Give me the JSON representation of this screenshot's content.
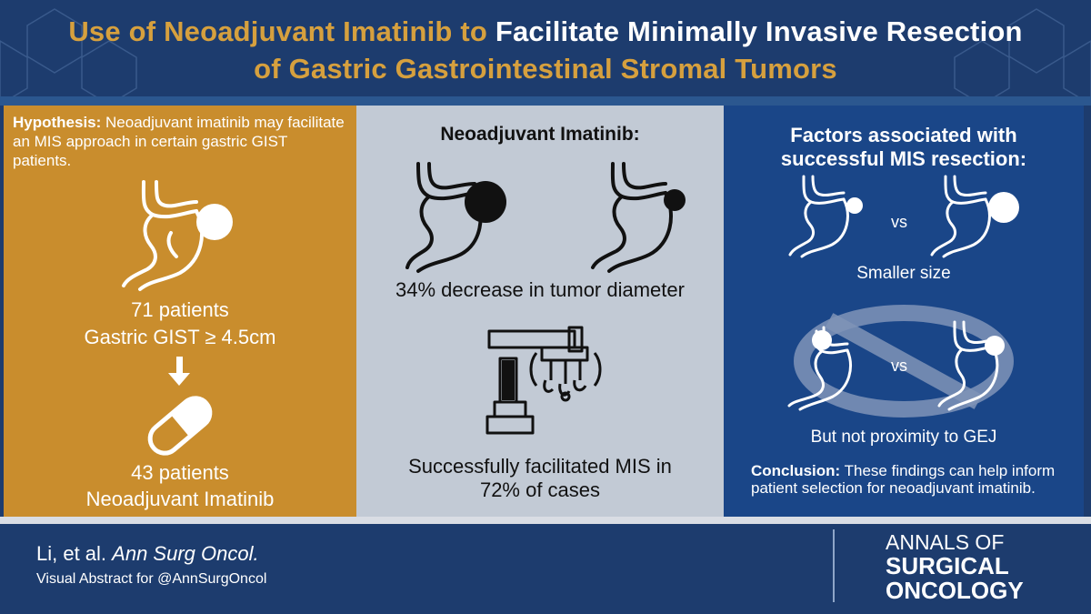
{
  "header": {
    "title_gold": "Use of Neoadjuvant Imatinib to",
    "title_white": "Facilitate Minimally Invasive Resection",
    "title_line2": "of Gastric Gastrointestinal Stromal Tumors"
  },
  "left_panel": {
    "hypothesis_label": "Hypothesis:",
    "hypothesis_text": "Neoadjuvant imatinib may facilitate an MIS approach in certain gastric GIST patients.",
    "patients_count": "71 patients",
    "patients_criteria": "Gastric GIST ≥ 4.5cm",
    "treated_count": "43 patients",
    "treated_label": "Neoadjuvant Imatinib",
    "icons": [
      "stomach-icon",
      "down-arrow-icon",
      "pill-icon"
    ]
  },
  "middle_panel": {
    "heading": "Neoadjuvant Imatinib:",
    "tumor_result": "34% decrease in tumor diameter",
    "mis_result_line1": "Successfully facilitated MIS in",
    "mis_result_line2": "72% of cases",
    "icons": [
      "stomach-large-tumor-icon",
      "stomach-small-tumor-icon",
      "surgical-robot-icon"
    ]
  },
  "right_panel": {
    "heading_line1": "Factors associated with",
    "heading_line2": "successful MIS resection:",
    "vs_label_1": "vs",
    "factor_1": "Smaller size",
    "vs_label_2": "vs",
    "factor_2": "But not proximity to GEJ",
    "conclusion_label": "Conclusion:",
    "conclusion_text": "These findings can help inform patient selection for neoadjuvant imatinib.",
    "icons": [
      "stomach-small-tumor-icon",
      "stomach-large-tumor-icon",
      "prohibited-icon",
      "stomach-distal-tumor-icon",
      "stomach-gej-tumor-icon"
    ]
  },
  "footer": {
    "citation_authors": "Li, et al.",
    "citation_journal": "Ann Surg Oncol.",
    "subtitle": "Visual Abstract for @AnnSurgOncol",
    "brand_line1": "ANNALS OF",
    "brand_line2": "SURGICAL",
    "brand_line3": "ONCOLOGY"
  },
  "colors": {
    "background": "#1d3c6e",
    "gold_panel": "#c98d2d",
    "gray_panel": "#c2cad5",
    "blue_panel": "#1a4688",
    "title_gold": "#d6a03e"
  }
}
